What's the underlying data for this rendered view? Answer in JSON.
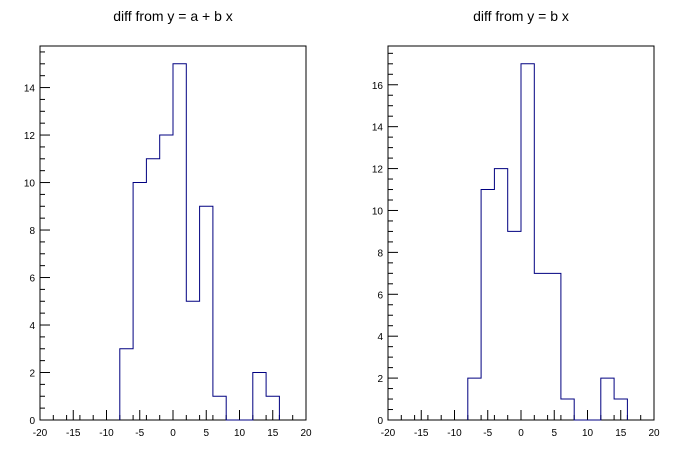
{
  "colors": {
    "histogram": "#000080",
    "axis": "#000000",
    "background": "#ffffff"
  },
  "chart_data": [
    {
      "type": "bar",
      "title": "diff from y = a + b x",
      "xlabel": "",
      "ylabel": "",
      "xlim": [
        -20,
        20
      ],
      "ylim": [
        0,
        15.75
      ],
      "xticks": [
        "-20",
        "-15",
        "-10",
        "-5",
        "0",
        "5",
        "10",
        "15",
        "20"
      ],
      "yticks": [
        "0",
        "2",
        "4",
        "6",
        "8",
        "10",
        "12",
        "14"
      ],
      "bin_edges": [
        -8,
        -6,
        -4,
        -2,
        0,
        2,
        4,
        6,
        8,
        10,
        12,
        14,
        16
      ],
      "values": [
        3,
        10,
        11,
        12,
        15,
        5,
        9,
        1,
        0,
        0,
        2,
        1
      ],
      "grid": false
    },
    {
      "type": "bar",
      "title": "diff from y = b x",
      "xlabel": "",
      "ylabel": "",
      "xlim": [
        -20,
        20
      ],
      "ylim": [
        0,
        17.85
      ],
      "xticks": [
        "-20",
        "-15",
        "-10",
        "-5",
        "0",
        "5",
        "10",
        "15",
        "20"
      ],
      "yticks": [
        "0",
        "2",
        "4",
        "6",
        "8",
        "10",
        "12",
        "14",
        "16"
      ],
      "bin_edges": [
        -8,
        -6,
        -4,
        -2,
        0,
        2,
        4,
        6,
        8,
        10,
        12,
        14,
        16
      ],
      "values": [
        2,
        11,
        12,
        9,
        17,
        7,
        7,
        1,
        0,
        0,
        2,
        1
      ],
      "grid": false
    }
  ]
}
